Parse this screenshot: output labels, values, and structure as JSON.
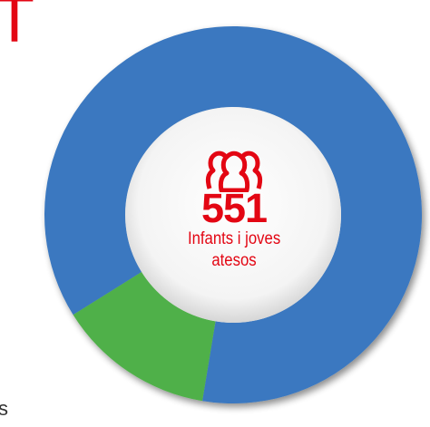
{
  "edge_text": {
    "top_glyph": "T",
    "bottom_glyph": "s"
  },
  "colors": {
    "accent_red": "#e30613",
    "ring_blue": "#3a78c0",
    "ring_green": "#4fb048",
    "inner_fill": "#ffffff"
  },
  "center": {
    "icon": "three-people-icon",
    "value": "551",
    "label_line1": "Infants i joves",
    "label_line2": "atesos"
  },
  "chart_data": {
    "type": "pie",
    "title": "",
    "slices": [
      {
        "label": "",
        "value": 86.5,
        "color": "#3a78c0"
      },
      {
        "label": "",
        "value": 13.5,
        "color": "#4fb048"
      }
    ],
    "start_angle_deg": 148,
    "direction": "clockwise",
    "donut": true,
    "legend": "none"
  }
}
